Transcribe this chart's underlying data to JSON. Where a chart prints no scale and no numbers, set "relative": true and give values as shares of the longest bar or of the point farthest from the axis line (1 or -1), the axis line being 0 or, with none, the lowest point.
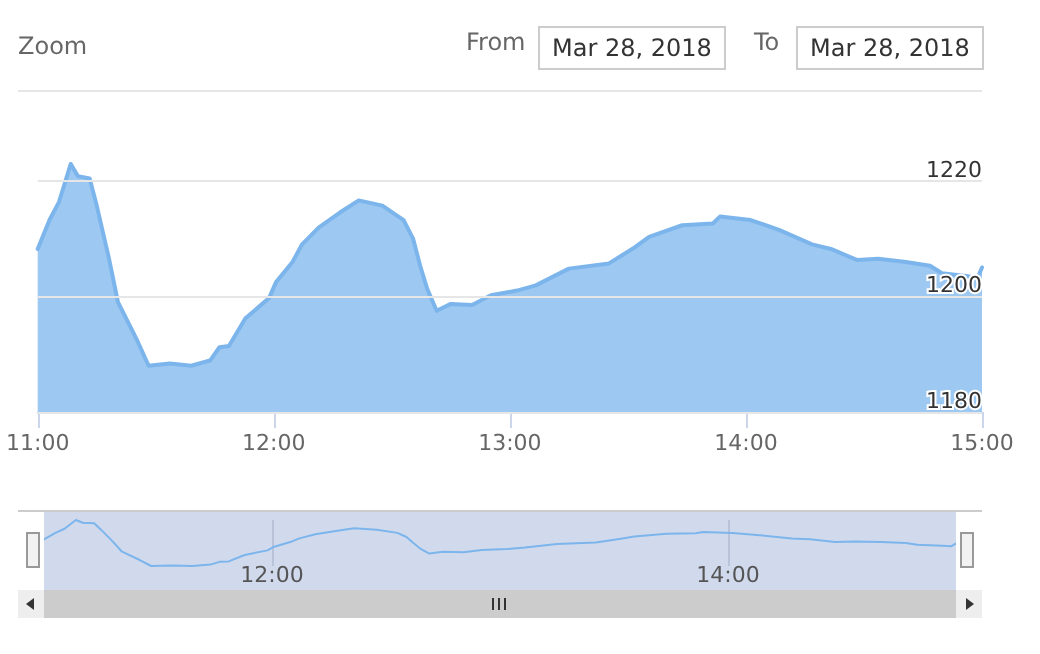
{
  "chart_data": [
    {
      "type": "area",
      "annotations": [
        "Zoom",
        "From",
        "Mar 28, 2018",
        "To",
        "Mar 28, 2018"
      ],
      "series": [
        {
          "color": "#7cb5ec",
          "x": [
            11.0,
            11.05,
            11.09,
            11.14,
            11.17,
            11.22,
            11.25,
            11.3,
            11.34,
            11.42,
            11.47,
            11.56,
            11.65,
            11.73,
            11.77,
            11.81,
            11.88,
            11.98,
            12.01,
            12.08,
            12.12,
            12.19,
            12.28,
            12.36,
            12.46,
            12.55,
            12.59,
            12.62,
            12.65,
            12.69,
            12.75,
            12.84,
            12.92,
            13.03,
            13.11,
            13.25,
            13.42,
            13.53,
            13.59,
            13.73,
            13.86,
            13.89,
            14.02,
            14.14,
            14.28,
            14.36,
            14.47,
            14.56,
            14.67,
            14.78,
            14.83,
            14.94,
            14.98,
            15.0
          ],
          "values": [
            1208.2,
            1213.2,
            1216.3,
            1222.9,
            1220.8,
            1220.4,
            1215.7,
            1206.9,
            1199,
            1192.5,
            1188,
            1188.4,
            1188,
            1188.9,
            1191.2,
            1191.4,
            1196.2,
            1199.7,
            1202.5,
            1206,
            1209,
            1211.9,
            1214.5,
            1216.6,
            1215.7,
            1213.2,
            1210,
            1205.3,
            1201.3,
            1197.5,
            1198.7,
            1198.5,
            1200.2,
            1201,
            1201.9,
            1204.8,
            1205.7,
            1208.5,
            1210.3,
            1212.3,
            1212.6,
            1213.8,
            1213.2,
            1211.5,
            1209,
            1208.2,
            1206.3,
            1206.5,
            1206,
            1205.3,
            1204,
            1203.5,
            1203.1,
            1205
          ]
        }
      ],
      "xlim": [
        11,
        15
      ],
      "xticks": [
        {
          "value": 11,
          "label": "11:00"
        },
        {
          "value": 12,
          "label": "12:00"
        },
        {
          "value": 13,
          "label": "13:00"
        },
        {
          "value": 14,
          "label": "14:00"
        },
        {
          "value": 15,
          "label": "15:00"
        }
      ],
      "ylim": [
        1180,
        1235
      ],
      "yticks": [
        1180,
        1200,
        1220
      ],
      "grid": "y",
      "marker": "none",
      "line_style": "solid"
    },
    {
      "type": "line",
      "relative": true,
      "tick_labels": "x",
      "series": [
        {
          "color": "#7cb5ec",
          "x": [
            11.0,
            11.05,
            11.09,
            11.14,
            11.17,
            11.22,
            11.25,
            11.3,
            11.34,
            11.42,
            11.47,
            11.56,
            11.65,
            11.73,
            11.77,
            11.81,
            11.88,
            11.98,
            12.01,
            12.08,
            12.12,
            12.19,
            12.28,
            12.36,
            12.46,
            12.55,
            12.59,
            12.62,
            12.65,
            12.69,
            12.75,
            12.84,
            12.92,
            13.03,
            13.11,
            13.25,
            13.42,
            13.53,
            13.59,
            13.73,
            13.86,
            13.89,
            14.02,
            14.14,
            14.28,
            14.36,
            14.47,
            14.56,
            14.67,
            14.78,
            14.83,
            14.94,
            14.98,
            15.0
          ],
          "values": [
            0.58,
            0.72,
            0.81,
            1,
            0.94,
            0.93,
            0.79,
            0.54,
            0.32,
            0.13,
            0,
            0.01,
            0,
            0.03,
            0.09,
            0.1,
            0.24,
            0.34,
            0.42,
            0.52,
            0.6,
            0.69,
            0.76,
            0.82,
            0.79,
            0.72,
            0.63,
            0.5,
            0.38,
            0.27,
            0.31,
            0.3,
            0.35,
            0.37,
            0.4,
            0.48,
            0.51,
            0.59,
            0.64,
            0.7,
            0.71,
            0.74,
            0.72,
            0.67,
            0.6,
            0.58,
            0.52,
            0.53,
            0.52,
            0.5,
            0.46,
            0.44,
            0.43,
            0.49
          ]
        }
      ],
      "xlim": [
        11,
        15
      ],
      "xticks": [
        {
          "value": 12,
          "label": "12:00"
        },
        {
          "value": 14,
          "label": "14:00"
        }
      ],
      "grid": "x",
      "marker": "none",
      "line_style": "solid"
    }
  ]
}
